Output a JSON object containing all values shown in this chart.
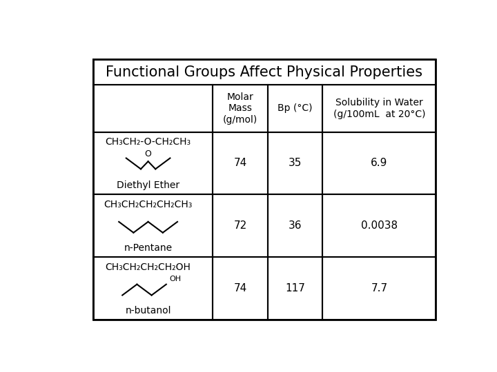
{
  "title": "Functional Groups Affect Physical Properties",
  "col_headers": [
    "",
    "Molar\nMass\n(g/mol)",
    "Bp (°C)",
    "Solubility in Water\n(g/100mL  at 20°C)"
  ],
  "rows": [
    {
      "formula": "CH₃CH₂-O-CH₂CH₃",
      "name": "Diethyl Ether",
      "molar_mass": "74",
      "bp": "35",
      "solubility": "6.9",
      "structure": "ether"
    },
    {
      "formula": "CH₃CH₂CH₂CH₂CH₃",
      "name": "n-Pentane",
      "molar_mass": "72",
      "bp": "36",
      "solubility": "0.0038",
      "structure": "pentane"
    },
    {
      "formula": "CH₃CH₂CH₂CH₂OH",
      "name": "n-butanol",
      "molar_mass": "74",
      "bp": "117",
      "solubility": "7.7",
      "structure": "butanol"
    }
  ],
  "bg_color": "#ffffff",
  "text_color": "#000000",
  "font_family": "DejaVu Sans",
  "title_fontsize": 15,
  "header_fontsize": 10,
  "cell_fontsize": 11,
  "formula_fontsize": 10,
  "name_fontsize": 10
}
